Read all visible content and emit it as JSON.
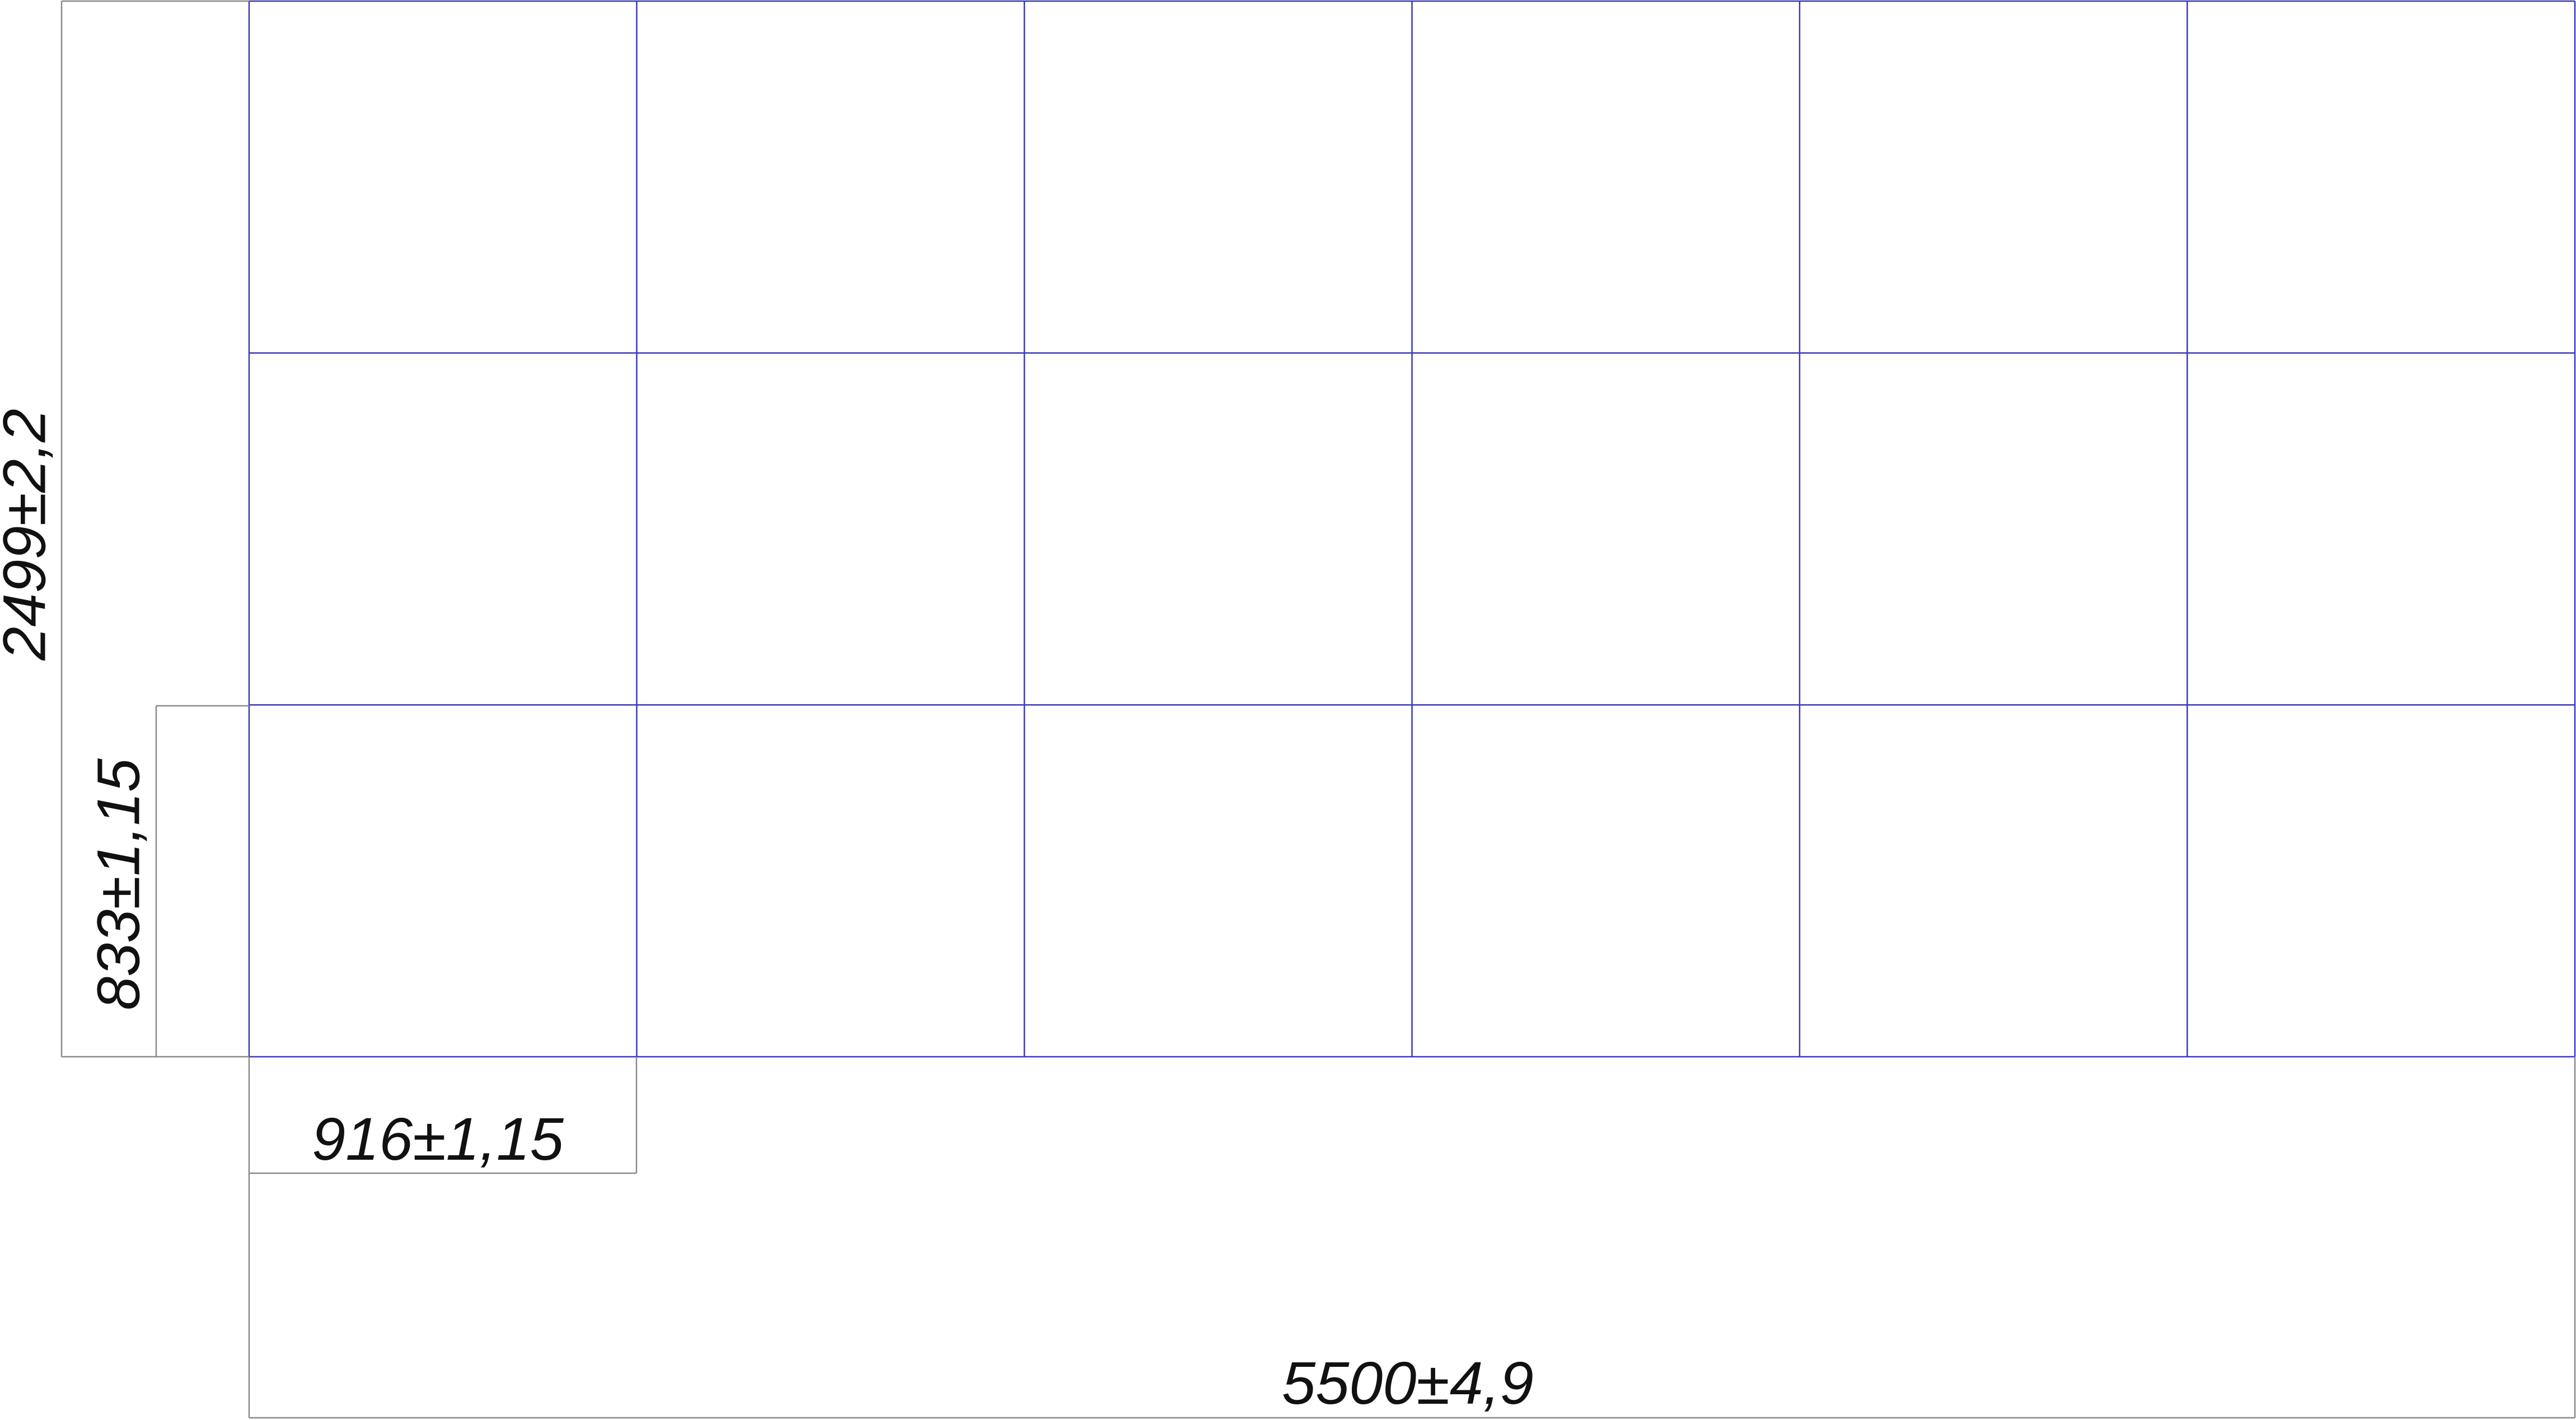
{
  "grid": {
    "rows": 3,
    "columns": 6,
    "line_color": "#3a3ab4"
  },
  "dimensions": {
    "overall_height": "2499±2,2",
    "row_height": "833±1,15",
    "column_width": "916±1,15",
    "overall_width": "5500±4,9"
  },
  "colors": {
    "background": "#ffffff",
    "dimension_line": "#8a8a8a",
    "text": "#111111"
  }
}
